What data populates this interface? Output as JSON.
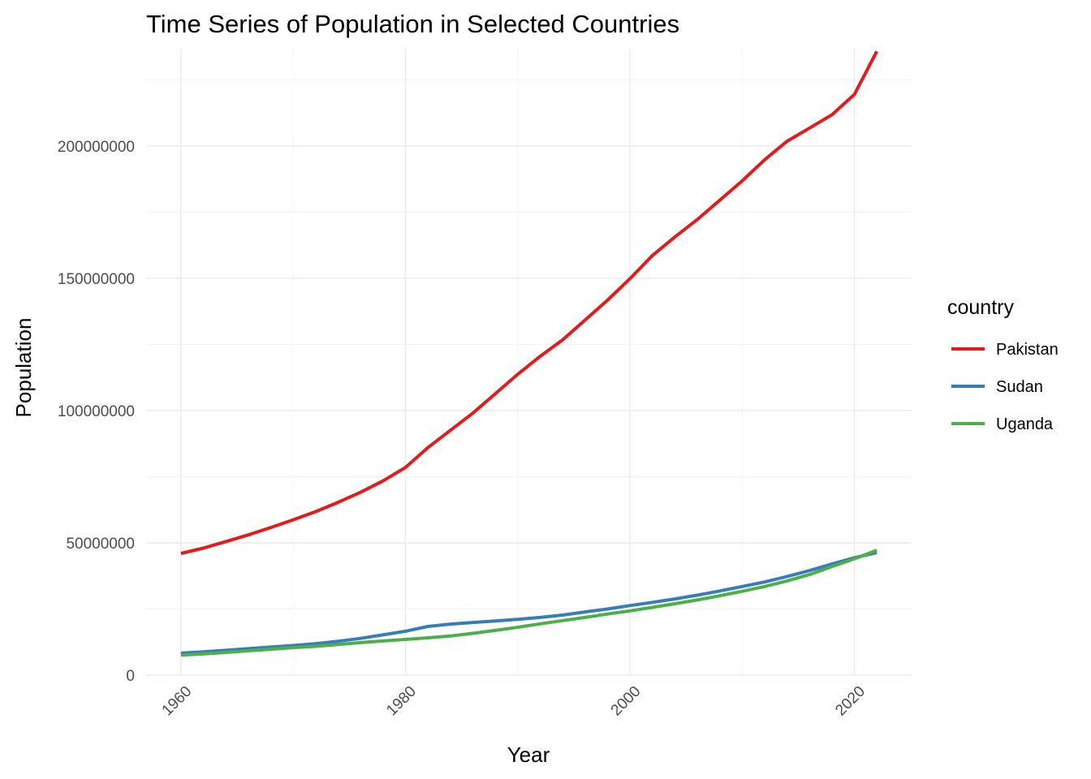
{
  "chart_data": {
    "type": "line",
    "title": "Time Series of Population in Selected Countries",
    "xlabel": "Year",
    "ylabel": "Population",
    "xlim": [
      1956.9,
      2025.1
    ],
    "ylim": [
      0,
      236800000
    ],
    "x_ticks": [
      1960,
      1980,
      2000,
      2020
    ],
    "y_ticks": [
      0,
      50000000,
      100000000,
      150000000,
      200000000
    ],
    "x_tick_labels": [
      "1960",
      "1980",
      "2000",
      "2020"
    ],
    "y_tick_labels": [
      "0",
      "50000000",
      "100000000",
      "150000000",
      "200000000"
    ],
    "grid": true,
    "legend": {
      "title": "country",
      "position": "right"
    },
    "x": [
      1960,
      1962,
      1964,
      1966,
      1968,
      1970,
      1972,
      1974,
      1976,
      1978,
      1980,
      1982,
      1984,
      1986,
      1988,
      1990,
      1992,
      1994,
      1996,
      1998,
      2000,
      2002,
      2004,
      2006,
      2008,
      2010,
      2012,
      2014,
      2016,
      2018,
      2020,
      2022
    ],
    "series": [
      {
        "name": "Pakistan",
        "color": "#e41a1c",
        "values": [
          46000000,
          48000000,
          50500000,
          53000000,
          55800000,
          58700000,
          61800000,
          65300000,
          69100000,
          73400000,
          78500000,
          86000000,
          92500000,
          99000000,
          106300000,
          113700000,
          120500000,
          126700000,
          134200000,
          141700000,
          149800000,
          158600000,
          165600000,
          172200000,
          179500000,
          186800000,
          194800000,
          201800000,
          206800000,
          211800000,
          219500000,
          235800000
        ]
      },
      {
        "name": "Sudan",
        "color": "#377eb8",
        "values": [
          8300000,
          8800000,
          9400000,
          10000000,
          10600000,
          11200000,
          11900000,
          12800000,
          13900000,
          15200000,
          16600000,
          18400000,
          19300000,
          19900000,
          20500000,
          21100000,
          21800000,
          22700000,
          23900000,
          25000000,
          26300000,
          27500000,
          28800000,
          30200000,
          31800000,
          33500000,
          35200000,
          37300000,
          39500000,
          42000000,
          44400000,
          46300000
        ]
      },
      {
        "name": "Uganda",
        "color": "#4daf4a",
        "values": [
          7600000,
          8000000,
          8600000,
          9200000,
          9800000,
          10400000,
          10900000,
          11600000,
          12300000,
          12900000,
          13500000,
          14100000,
          14800000,
          15800000,
          16900000,
          18100000,
          19400000,
          20600000,
          21800000,
          23100000,
          24300000,
          25600000,
          27000000,
          28400000,
          30000000,
          31700000,
          33500000,
          35600000,
          38000000,
          41000000,
          44000000,
          47200000
        ]
      }
    ]
  }
}
